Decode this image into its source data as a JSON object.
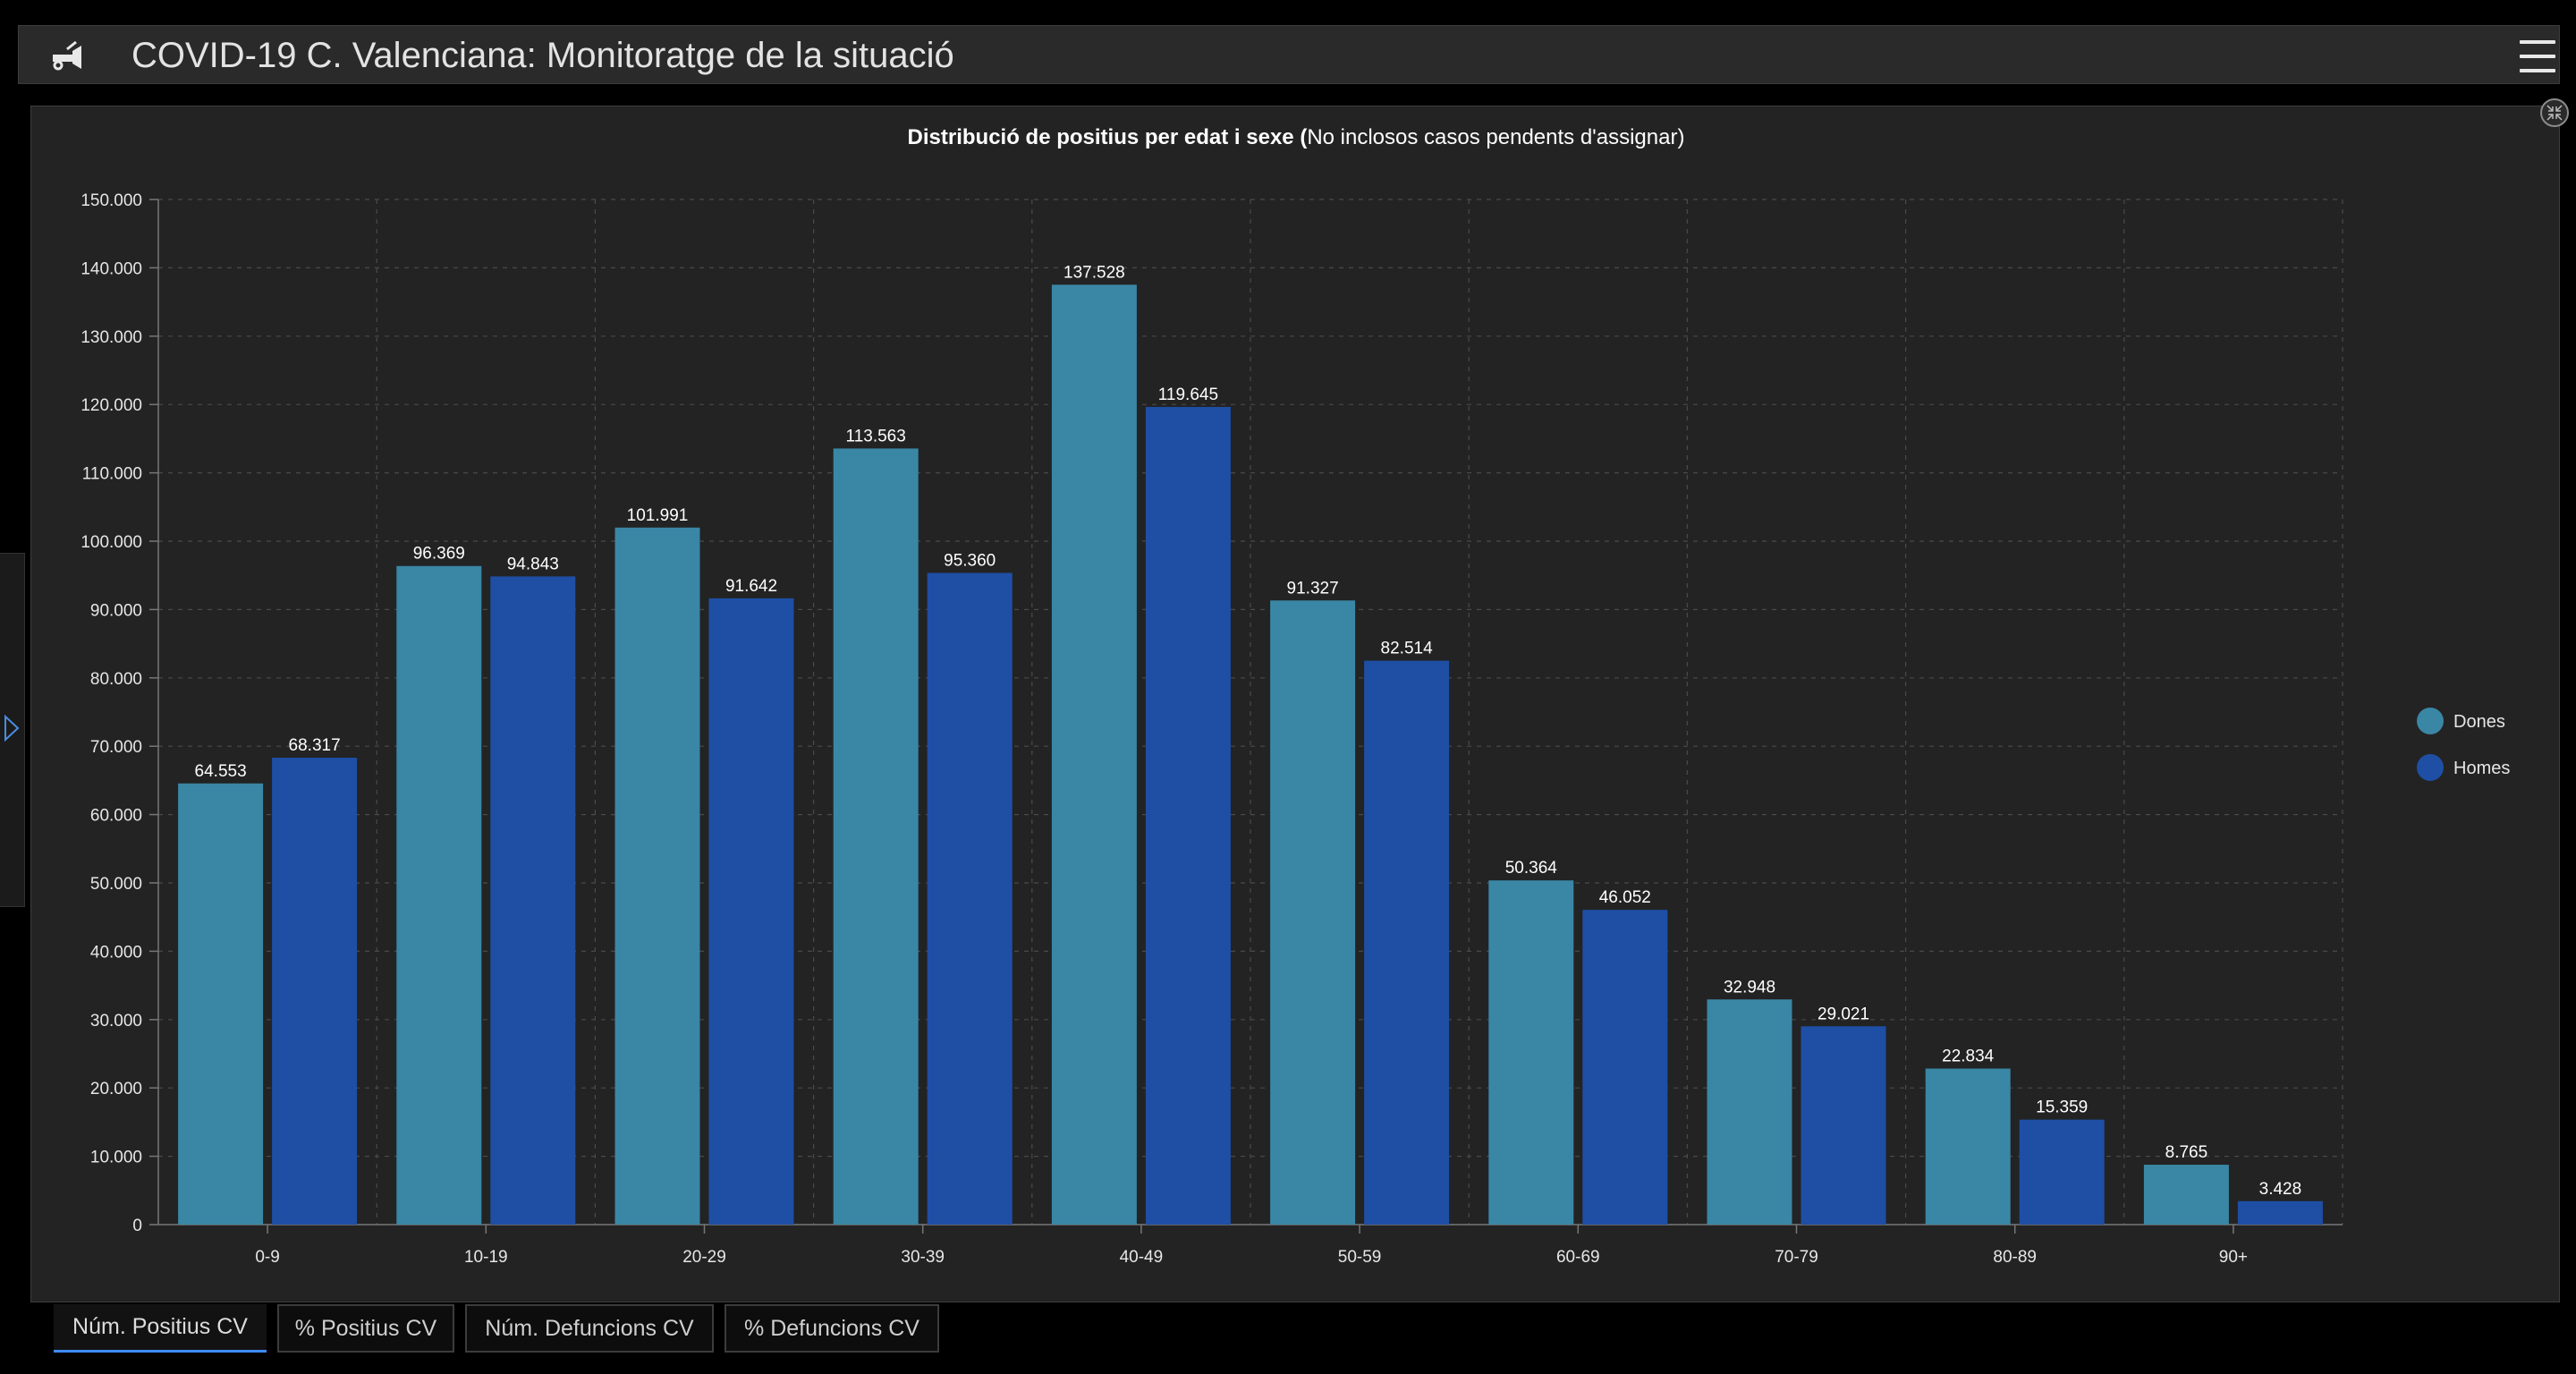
{
  "header": {
    "title": "COVID-19 C. Valenciana: Monitoratge de la situació",
    "logo_icon": "trumpet-logo-icon",
    "menu_icon": "hamburger-menu-icon"
  },
  "sidebar_toggle": {
    "icon": "triangle-right-icon"
  },
  "panel": {
    "collapse_icon": "collapse-arrows-icon"
  },
  "tabs": [
    {
      "label": "Núm. Positius CV",
      "active": true
    },
    {
      "label": "% Positius CV",
      "active": false
    },
    {
      "label": "Núm. Defuncions CV",
      "active": false
    },
    {
      "label": "% Defuncions CV",
      "active": false
    }
  ],
  "chart_data": {
    "type": "bar",
    "title_bold": "Distribució de positius per edat i sexe (",
    "title_normal": "No inclosos casos pendents d'assignar)",
    "categories": [
      "0-9",
      "10-19",
      "20-29",
      "30-39",
      "40-49",
      "50-59",
      "60-69",
      "70-79",
      "80-89",
      "90+"
    ],
    "series": [
      {
        "name": "Dones",
        "color": "#3a86a5",
        "values": [
          64553,
          96369,
          101991,
          113563,
          137528,
          91327,
          50364,
          32948,
          22834,
          8765
        ]
      },
      {
        "name": "Homes",
        "color": "#1e4fa5",
        "values": [
          68317,
          94843,
          91642,
          95360,
          119645,
          82514,
          46052,
          29021,
          15359,
          3428
        ]
      }
    ],
    "data_labels": {
      "Dones": [
        "64.553",
        "96.369",
        "101.991",
        "113.563",
        "137.528",
        "91.327",
        "50.364",
        "32.948",
        "22.834",
        "8.765"
      ],
      "Homes": [
        "68.317",
        "94.843",
        "91.642",
        "95.360",
        "119.645",
        "82.514",
        "46.052",
        "29.021",
        "15.359",
        "3.428"
      ]
    },
    "y_ticks": [
      0,
      10000,
      20000,
      30000,
      40000,
      50000,
      60000,
      70000,
      80000,
      90000,
      100000,
      110000,
      120000,
      130000,
      140000,
      150000
    ],
    "y_tick_labels": [
      "0",
      "10.000",
      "20.000",
      "30.000",
      "40.000",
      "50.000",
      "60.000",
      "70.000",
      "80.000",
      "90.000",
      "100.000",
      "110.000",
      "120.000",
      "130.000",
      "140.000",
      "150.000"
    ],
    "ylim": [
      0,
      150000
    ],
    "grid": true,
    "legend_position": "right",
    "xlabel": "",
    "ylabel": ""
  }
}
